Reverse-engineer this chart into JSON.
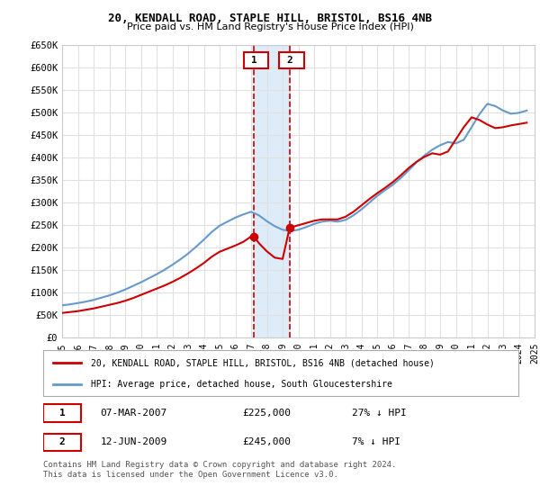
{
  "title": "20, KENDALL ROAD, STAPLE HILL, BRISTOL, BS16 4NB",
  "subtitle": "Price paid vs. HM Land Registry's House Price Index (HPI)",
  "red_label": "20, KENDALL ROAD, STAPLE HILL, BRISTOL, BS16 4NB (detached house)",
  "blue_label": "HPI: Average price, detached house, South Gloucestershire",
  "sale1_date": "07-MAR-2007",
  "sale1_price": 225000,
  "sale1_pct": "27% ↓ HPI",
  "sale1_year": 2007.18,
  "sale2_date": "12-JUN-2009",
  "sale2_price": 245000,
  "sale2_pct": "7% ↓ HPI",
  "sale2_year": 2009.45,
  "footer": "Contains HM Land Registry data © Crown copyright and database right 2024.\nThis data is licensed under the Open Government Licence v3.0.",
  "ylim": [
    0,
    650000
  ],
  "xlim": [
    1995,
    2025
  ],
  "yticks": [
    0,
    50000,
    100000,
    150000,
    200000,
    250000,
    300000,
    350000,
    400000,
    450000,
    500000,
    550000,
    600000,
    650000
  ],
  "ytick_labels": [
    "£0",
    "£50K",
    "£100K",
    "£150K",
    "£200K",
    "£250K",
    "£300K",
    "£350K",
    "£400K",
    "£450K",
    "£500K",
    "£550K",
    "£600K",
    "£650K"
  ],
  "xticks": [
    1995,
    1996,
    1997,
    1998,
    1999,
    2000,
    2001,
    2002,
    2003,
    2004,
    2005,
    2006,
    2007,
    2008,
    2009,
    2010,
    2011,
    2012,
    2013,
    2014,
    2015,
    2016,
    2017,
    2018,
    2019,
    2020,
    2021,
    2022,
    2023,
    2024,
    2025
  ],
  "hpi_x": [
    1995,
    1995.5,
    1996,
    1996.5,
    1997,
    1997.5,
    1998,
    1998.5,
    1999,
    1999.5,
    2000,
    2000.5,
    2001,
    2001.5,
    2002,
    2002.5,
    2003,
    2003.5,
    2004,
    2004.5,
    2005,
    2005.5,
    2006,
    2006.5,
    2007,
    2007.5,
    2008,
    2008.5,
    2009,
    2009.5,
    2010,
    2010.5,
    2011,
    2011.5,
    2012,
    2012.5,
    2013,
    2013.5,
    2014,
    2014.5,
    2015,
    2015.5,
    2016,
    2016.5,
    2017,
    2017.5,
    2018,
    2018.5,
    2019,
    2019.5,
    2020,
    2020.5,
    2021,
    2021.5,
    2022,
    2022.5,
    2023,
    2023.5,
    2024,
    2024.5
  ],
  "hpi_y": [
    72000,
    74000,
    77000,
    80000,
    84000,
    89000,
    94000,
    100000,
    107000,
    115000,
    123000,
    132000,
    141000,
    151000,
    162000,
    174000,
    187000,
    202000,
    218000,
    235000,
    249000,
    258000,
    267000,
    274000,
    280000,
    272000,
    259000,
    248000,
    240000,
    237000,
    240000,
    246000,
    253000,
    258000,
    260000,
    258000,
    262000,
    272000,
    285000,
    300000,
    315000,
    328000,
    340000,
    355000,
    372000,
    390000,
    405000,
    418000,
    428000,
    435000,
    432000,
    440000,
    468000,
    497000,
    520000,
    515000,
    505000,
    498000,
    500000,
    505000
  ],
  "red_x": [
    1995,
    1995.5,
    1996,
    1996.5,
    1997,
    1997.5,
    1998,
    1998.5,
    1999,
    1999.5,
    2000,
    2000.5,
    2001,
    2001.5,
    2002,
    2002.5,
    2003,
    2003.5,
    2004,
    2004.5,
    2005,
    2005.5,
    2006,
    2006.5,
    2007,
    2007.18,
    2007.5,
    2008,
    2008.5,
    2009,
    2009.45,
    2009.5,
    2010,
    2010.5,
    2011,
    2011.5,
    2012,
    2012.5,
    2013,
    2013.5,
    2014,
    2014.5,
    2015,
    2015.5,
    2016,
    2016.5,
    2017,
    2017.5,
    2018,
    2018.5,
    2019,
    2019.5,
    2020,
    2020.5,
    2021,
    2021.5,
    2022,
    2022.5,
    2023,
    2023.5,
    2024,
    2024.5
  ],
  "red_y": [
    55000,
    57000,
    59000,
    62000,
    65000,
    69000,
    73000,
    77000,
    82000,
    88000,
    95000,
    102000,
    109000,
    116000,
    124000,
    133000,
    143000,
    154000,
    166000,
    180000,
    191000,
    198000,
    205000,
    213000,
    225000,
    225000,
    210000,
    192000,
    178000,
    175000,
    245000,
    245000,
    250000,
    255000,
    260000,
    263000,
    263000,
    263000,
    269000,
    280000,
    294000,
    308000,
    321000,
    333000,
    346000,
    361000,
    377000,
    391000,
    402000,
    410000,
    407000,
    414000,
    441000,
    468000,
    490000,
    484000,
    474000,
    466000,
    468000,
    472000,
    475000,
    478000
  ],
  "bg_color": "#ffffff",
  "grid_color": "#e0e0e0",
  "red_color": "#cc0000",
  "blue_color": "#6699cc",
  "shade_color": "#d0e4f7",
  "vline_color": "#cc0000",
  "box_color": "#cc0000"
}
